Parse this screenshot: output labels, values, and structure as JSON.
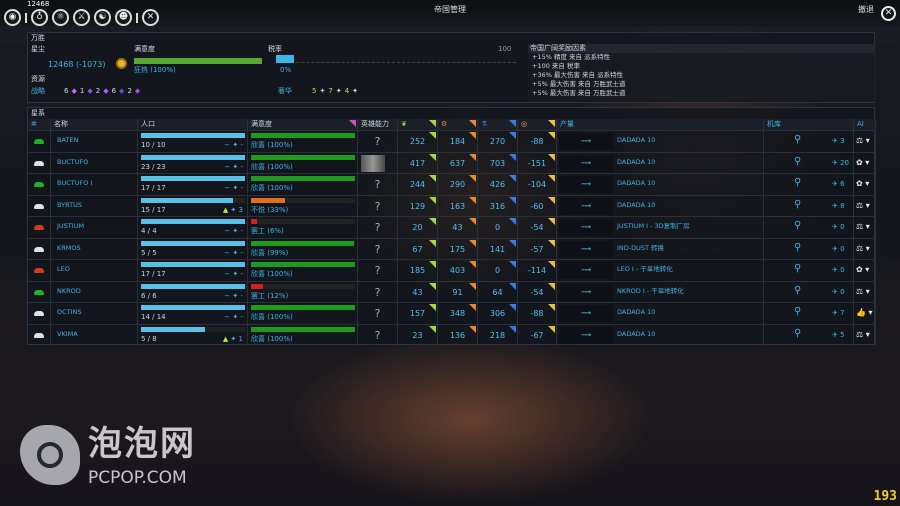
{
  "topbar": {
    "dust_readout": "12468",
    "title": "帝国管理",
    "retreat": "撤退",
    "icons": [
      "galaxy-icon",
      "empire-icon",
      "research-icon",
      "military-icon",
      "diplomacy-icon",
      "heroes-icon",
      "settings-icon"
    ]
  },
  "empire": {
    "name": "万胜",
    "dust_label": "星尘",
    "dust_value": "12468 (-1073)",
    "happiness_label": "满意度",
    "happiness_status": "狂热 (100%)",
    "happiness_pct": 100,
    "tax_label": "税率",
    "tax_value": "0%",
    "tax_max": "100",
    "tax_pct": 0,
    "resources_label": "资源",
    "strategic_label": "战略",
    "strategic": [
      "6",
      "1",
      "2",
      "6",
      "2"
    ],
    "luxury_label": "奢华",
    "luxury": [
      "5",
      "7",
      "4"
    ],
    "bonus_title": "帝国广阔奖励因素",
    "bonuses": [
      "+15% 精度 来自 派系特性",
      "+100 来自 税率",
      "+36% 最大伤害 来自 派系特性",
      "+5% 最大伤害 来自 万胜武士道",
      "+5% 最大伤害 来自 万胜武士道"
    ]
  },
  "systems": {
    "label": "星系",
    "headers": {
      "name": "名称",
      "population": "人口",
      "happiness": "满意度",
      "hero": "英雄能力",
      "production": "产量",
      "hangar": "机库",
      "ai": "AI"
    },
    "colors": {
      "food": "#a8d83a",
      "industry": "#e88a2a",
      "science": "#3a7be0",
      "dust": "#e8c040",
      "happy": "#1f9a1f",
      "unhappy": "#e07020",
      "strike": "#d02020"
    },
    "rows": [
      {
        "name": "BATEN",
        "eye": "#22b022",
        "pop": "10 / 10",
        "pop_pct": 100,
        "growth": "-",
        "happy": "欣喜 (100%)",
        "happy_pct": 100,
        "mood": "happy",
        "hero": "?",
        "food": "252",
        "industry": "184",
        "science": "270",
        "dust": "-88",
        "prod": "DADADA 10",
        "hangar": "3",
        "ai": "⚖"
      },
      {
        "name": "BUCTUFO",
        "eye": "#e0e0e0",
        "pop": "23 / 23",
        "pop_pct": 100,
        "growth": "-",
        "happy": "欣喜 (100%)",
        "happy_pct": 100,
        "mood": "happy",
        "hero": "",
        "food": "417",
        "industry": "637",
        "science": "703",
        "dust": "-151",
        "prod": "DADADA 10",
        "hangar": "20",
        "ai": "✿"
      },
      {
        "name": "BUCTUFO I",
        "eye": "#22b022",
        "pop": "17 / 17",
        "pop_pct": 100,
        "growth": "-",
        "happy": "欣喜 (100%)",
        "happy_pct": 100,
        "mood": "happy",
        "hero": "?",
        "food": "244",
        "industry": "290",
        "science": "426",
        "dust": "-104",
        "prod": "DADADA 10",
        "hangar": "6",
        "ai": "✿"
      },
      {
        "name": "BYRTUS",
        "eye": "#e0e0e0",
        "pop": "15 / 17",
        "pop_pct": 88,
        "growth": "3",
        "happy": "不悦 (33%)",
        "happy_pct": 33,
        "mood": "unhappy",
        "hero": "?",
        "food": "129",
        "industry": "163",
        "science": "316",
        "dust": "-60",
        "prod": "DADADA 10",
        "hangar": "8",
        "ai": "⚖"
      },
      {
        "name": "JUSTIUM",
        "eye": "#d03a20",
        "pop": "4 / 4",
        "pop_pct": 100,
        "growth": "-",
        "happy": "罢工 (6%)",
        "happy_pct": 6,
        "mood": "strike",
        "hero": "?",
        "food": "20",
        "industry": "43",
        "science": "0",
        "dust": "-54",
        "prod": "JUSTIUM I - 3D复制厂房",
        "hangar": "0",
        "ai": "⚖"
      },
      {
        "name": "KRMOS",
        "eye": "#e0e0e0",
        "pop": "5 / 5",
        "pop_pct": 100,
        "growth": "-",
        "happy": "欣喜 (99%)",
        "happy_pct": 99,
        "mood": "happy",
        "hero": "?",
        "food": "67",
        "industry": "175",
        "science": "141",
        "dust": "-57",
        "prod": "IND-DUST 转换",
        "hangar": "0",
        "ai": "⚖"
      },
      {
        "name": "LEO",
        "eye": "#d03a20",
        "pop": "17 / 17",
        "pop_pct": 100,
        "growth": "-",
        "happy": "欣喜 (100%)",
        "happy_pct": 100,
        "mood": "happy",
        "hero": "?",
        "food": "185",
        "industry": "403",
        "science": "0",
        "dust": "-114",
        "prod": "LEO I - 干旱地转化",
        "hangar": "0",
        "ai": "✿"
      },
      {
        "name": "NKROD",
        "eye": "#22b022",
        "pop": "6 / 6",
        "pop_pct": 100,
        "growth": "-",
        "happy": "罢工 (12%)",
        "happy_pct": 12,
        "mood": "strike",
        "hero": "?",
        "food": "43",
        "industry": "91",
        "science": "64",
        "dust": "-54",
        "prod": "NKROD I - 干旱地转化",
        "hangar": "0",
        "ai": "⚖"
      },
      {
        "name": "OCTINS",
        "eye": "#e0e0e0",
        "pop": "14 / 14",
        "pop_pct": 100,
        "growth": "-",
        "happy": "欣喜 (100%)",
        "happy_pct": 100,
        "mood": "happy",
        "hero": "?",
        "food": "157",
        "industry": "348",
        "science": "306",
        "dust": "-88",
        "prod": "DADADA 10",
        "hangar": "7",
        "ai": "👍"
      },
      {
        "name": "VKIMA",
        "eye": "#e0e0e0",
        "pop": "5 / 8",
        "pop_pct": 62,
        "growth": "1",
        "happy": "欣喜 (100%)",
        "happy_pct": 100,
        "mood": "happy",
        "hero": "?",
        "food": "23",
        "industry": "136",
        "science": "218",
        "dust": "-67",
        "prod": "DADADA 10",
        "hangar": "5",
        "ai": "⚖"
      }
    ]
  },
  "watermark": {
    "brand": "泡泡网",
    "site": "PCPOP.COM"
  },
  "fps": "193"
}
